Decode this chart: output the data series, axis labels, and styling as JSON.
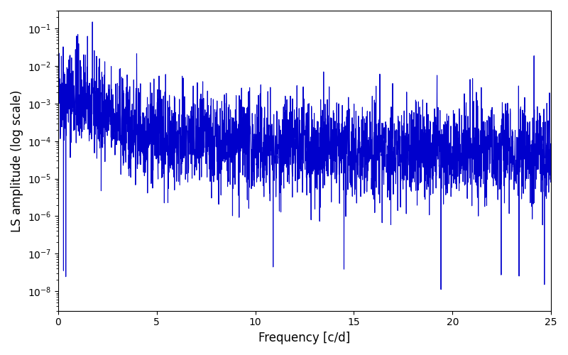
{
  "title": "",
  "xlabel": "Frequency [c/d]",
  "ylabel": "LS amplitude (log scale)",
  "xlim": [
    0,
    25
  ],
  "ylim": [
    3e-09,
    0.3
  ],
  "yscale": "log",
  "line_color": "#0000cc",
  "line_width": 0.8,
  "figsize": [
    8.0,
    5.0
  ],
  "dpi": 100,
  "n_points": 3000,
  "freq_max": 25.0,
  "peak_freq": 1.0,
  "peak_amplitude": 0.07,
  "seed": 42
}
